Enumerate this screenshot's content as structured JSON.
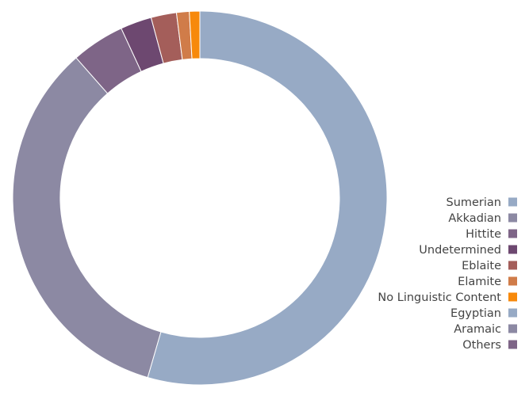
{
  "chart_data": {
    "type": "pie",
    "variant": "donut",
    "title": "",
    "legend_position": "right",
    "slices": [
      {
        "label": "Sumerian",
        "value": 54.5,
        "color": "#97aac5"
      },
      {
        "label": "Akkadian",
        "value": 34.0,
        "color": "#8c89a3"
      },
      {
        "label": "Hittite",
        "value": 4.6,
        "color": "#7e6587"
      },
      {
        "label": "Undetermined",
        "value": 2.7,
        "color": "#6d4870"
      },
      {
        "label": "Eblaite",
        "value": 2.2,
        "color": "#a45e5a"
      },
      {
        "label": "Elamite",
        "value": 1.1,
        "color": "#d07c49"
      },
      {
        "label": "No Linguistic Content",
        "value": 0.9,
        "color": "#f7890b"
      },
      {
        "label": "Egyptian",
        "value": 0,
        "color": "#97aac5"
      },
      {
        "label": "Aramaic",
        "value": 0,
        "color": "#8c89a3"
      },
      {
        "label": "Others",
        "value": 0,
        "color": "#7e6587"
      }
    ]
  }
}
